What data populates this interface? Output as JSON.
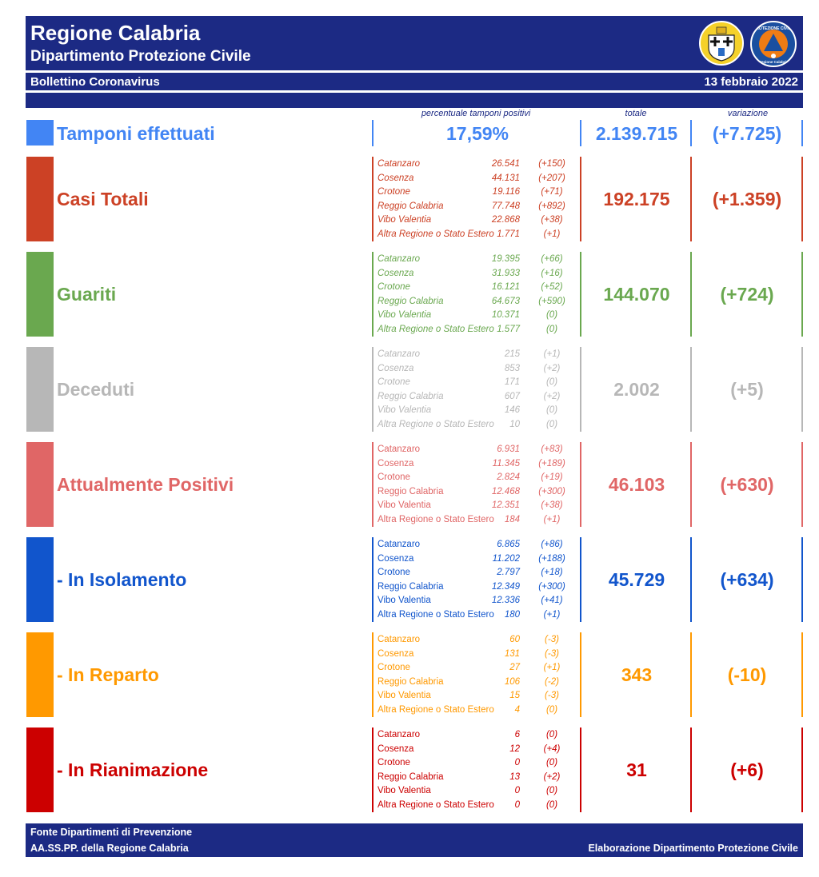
{
  "header": {
    "title": "Regione Calabria",
    "subtitle": "Dipartimento Protezione Civile",
    "bulletin": "Bollettino Coronavirus",
    "date": "13 febbraio 2022",
    "logo_text": "PROTEZIONE CIVILE",
    "logo_text2": "Regione Calabria"
  },
  "columns": {
    "pct": "percentuale tamponi positivi",
    "total": "totale",
    "change": "variazione"
  },
  "tamponi": {
    "label": "Tamponi effettuati",
    "pct": "17,59%",
    "total": "2.139.715",
    "change": "(+7.725)",
    "color": "#4285f4"
  },
  "sections": [
    {
      "label": "Casi Totali",
      "total": "192.175",
      "change": "(+1.359)",
      "color": "#cc4125",
      "italic": true,
      "rows": [
        {
          "name": "Catanzaro",
          "value": "26.541",
          "delta": "(+150)"
        },
        {
          "name": "Cosenza",
          "value": "44.131",
          "delta": "(+207)"
        },
        {
          "name": "Crotone",
          "value": "19.116",
          "delta": "(+71)"
        },
        {
          "name": "Reggio Calabria",
          "value": "77.748",
          "delta": "(+892)"
        },
        {
          "name": "Vibo Valentia",
          "value": "22.868",
          "delta": "(+38)"
        },
        {
          "name": "Altra Regione o Stato Estero",
          "value": "1.771",
          "delta": "(+1)"
        }
      ]
    },
    {
      "label": "Guariti",
      "total": "144.070",
      "change": "(+724)",
      "color": "#6aa84f",
      "italic": true,
      "rows": [
        {
          "name": "Catanzaro",
          "value": "19.395",
          "delta": "(+66)"
        },
        {
          "name": "Cosenza",
          "value": "31.933",
          "delta": "(+16)"
        },
        {
          "name": "Crotone",
          "value": "16.121",
          "delta": "(+52)"
        },
        {
          "name": "Reggio Calabria",
          "value": "64.673",
          "delta": "(+590)"
        },
        {
          "name": "Vibo Valentia",
          "value": "10.371",
          "delta": "(0)"
        },
        {
          "name": "Altra Regione o Stato Estero",
          "value": "1.577",
          "delta": "(0)"
        }
      ]
    },
    {
      "label": "Deceduti",
      "total": "2.002",
      "change": "(+5)",
      "color": "#b7b7b7",
      "italic": true,
      "rows": [
        {
          "name": "Catanzaro",
          "value": "215",
          "delta": "(+1)"
        },
        {
          "name": "Cosenza",
          "value": "853",
          "delta": "(+2)"
        },
        {
          "name": "Crotone",
          "value": "171",
          "delta": "(0)"
        },
        {
          "name": "Reggio Calabria",
          "value": "607",
          "delta": "(+2)"
        },
        {
          "name": "Vibo Valentia",
          "value": "146",
          "delta": "(0)"
        },
        {
          "name": "Altra Regione o Stato Estero",
          "value": "10",
          "delta": "(0)"
        }
      ]
    },
    {
      "label": "Attualmente Positivi",
      "total": "46.103",
      "change": "(+630)",
      "color": "#e06666",
      "italic": false,
      "rows": [
        {
          "name": "Catanzaro",
          "value": "6.931",
          "delta": "(+83)"
        },
        {
          "name": "Cosenza",
          "value": "11.345",
          "delta": "(+189)"
        },
        {
          "name": "Crotone",
          "value": "2.824",
          "delta": "(+19)"
        },
        {
          "name": "Reggio Calabria",
          "value": "12.468",
          "delta": "(+300)"
        },
        {
          "name": "Vibo Valentia",
          "value": "12.351",
          "delta": "(+38)"
        },
        {
          "name": "Altra Regione o Stato Estero",
          "value": "184",
          "delta": "(+1)"
        }
      ]
    },
    {
      "label": " - In Isolamento",
      "total": "45.729",
      "change": "(+634)",
      "color": "#1155cc",
      "italic": false,
      "rows": [
        {
          "name": "Catanzaro",
          "value": "6.865",
          "delta": "(+86)"
        },
        {
          "name": "Cosenza",
          "value": "11.202",
          "delta": "(+188)"
        },
        {
          "name": "Crotone",
          "value": "2.797",
          "delta": "(+18)"
        },
        {
          "name": "Reggio Calabria",
          "value": "12.349",
          "delta": "(+300)"
        },
        {
          "name": "Vibo Valentia",
          "value": "12.336",
          "delta": "(+41)"
        },
        {
          "name": "Altra Regione o Stato Estero",
          "value": "180",
          "delta": "(+1)"
        }
      ]
    },
    {
      "label": " - In Reparto",
      "total": "343",
      "change": "(-10)",
      "color": "#ff9900",
      "italic": false,
      "rows": [
        {
          "name": "Catanzaro",
          "value": "60",
          "delta": "(-3)"
        },
        {
          "name": "Cosenza",
          "value": "131",
          "delta": "(-3)"
        },
        {
          "name": "Crotone",
          "value": "27",
          "delta": "(+1)"
        },
        {
          "name": "Reggio Calabria",
          "value": "106",
          "delta": "(-2)"
        },
        {
          "name": "Vibo Valentia",
          "value": "15",
          "delta": "(-3)"
        },
        {
          "name": "Altra Regione o Stato Estero",
          "value": "4",
          "delta": "(0)"
        }
      ]
    },
    {
      "label": " - In Rianimazione",
      "total": "31",
      "change": "(+6)",
      "color": "#cc0000",
      "italic": false,
      "rows": [
        {
          "name": "Catanzaro",
          "value": "6",
          "delta": "(0)"
        },
        {
          "name": "Cosenza",
          "value": "12",
          "delta": "(+4)"
        },
        {
          "name": "Crotone",
          "value": "0",
          "delta": "(0)"
        },
        {
          "name": "Reggio Calabria",
          "value": "13",
          "delta": "(+2)"
        },
        {
          "name": "Vibo Valentia",
          "value": "0",
          "delta": "(0)"
        },
        {
          "name": "Altra Regione o Stato Estero",
          "value": "0",
          "delta": "(0)"
        }
      ]
    }
  ],
  "footer": {
    "line1": "Fonte Dipartimenti di Prevenzione",
    "line2": "AA.SS.PP.  della Regione Calabria",
    "credit": "Elaborazione Dipartimento Protezione Civile"
  }
}
